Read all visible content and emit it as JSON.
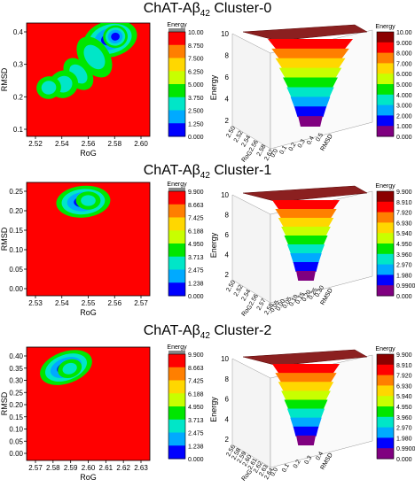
{
  "panels": [
    {
      "title": {
        "prefix": "ChAT-Aβ",
        "sub": "42",
        "suffix": " Cluster-0"
      },
      "chart_data": {
        "type": "heatmap",
        "xlabel": "RoG",
        "ylabel": "RMSD",
        "x_ticks": [
          "2.52",
          "2.54",
          "2.56",
          "2.58",
          "2.60"
        ],
        "y_ticks": [
          "0.1",
          "0.2",
          "0.3",
          "0.4"
        ],
        "xlim": [
          2.505,
          2.603
        ],
        "ylim": [
          0.03,
          0.49
        ],
        "colorbar": {
          "label": "Energy",
          "ticks": [
            "10.00",
            "8.750",
            "7.500",
            "6.250",
            "5.000",
            "3.750",
            "2.500",
            "1.250",
            "0.000"
          ],
          "range": [
            0,
            10
          ]
        },
        "surface": {
          "zlabel": "Energy",
          "z_ticks": [
            "10",
            "8",
            "6",
            "4",
            "2"
          ],
          "x_ticks": [
            "2.50",
            "2.52",
            "2.54",
            "2.56",
            "2.58",
            "2.62"
          ],
          "x_label": "RoG",
          "y_ticks": [
            "0.0",
            "0.1",
            "0.2",
            "0.3",
            "0.4",
            "0.5"
          ],
          "y_label": "RMSD",
          "zlim": [
            0,
            10
          ]
        },
        "colorbar2": {
          "label": "Energy",
          "ticks": [
            "10.00",
            "9.000",
            "8.000",
            "7.000",
            "6.000",
            "5.000",
            "4.000",
            "3.000",
            "2.000",
            "1.000",
            "0.000"
          ],
          "range": [
            0,
            10
          ]
        }
      }
    },
    {
      "title": {
        "prefix": "ChAT-Aβ",
        "sub": "42",
        "suffix": " Cluster-1"
      },
      "chart_data": {
        "type": "heatmap",
        "xlabel": "RoG",
        "ylabel": "RMSD",
        "x_ticks": [
          "2.53",
          "2.54",
          "2.55",
          "2.56",
          "2.57"
        ],
        "y_ticks": [
          "0.00",
          "0.05",
          "0.10",
          "0.15",
          "0.20",
          "0.25"
        ],
        "xlim": [
          2.524,
          2.578
        ],
        "ylim": [
          -0.01,
          0.285
        ],
        "colorbar": {
          "label": "Energy",
          "ticks": [
            "9.900",
            "8.663",
            "7.425",
            "6.188",
            "4.950",
            "3.713",
            "2.475",
            "1.238",
            "0.000"
          ],
          "range": [
            0,
            9.9
          ]
        },
        "surface": {
          "zlabel": "Energy",
          "z_ticks": [
            "10",
            "8",
            "6",
            "4",
            "2"
          ],
          "x_ticks": [
            "2.50",
            "2.52",
            "2.54",
            "2.56",
            "2.57",
            "2.58"
          ],
          "x_label": "RoG",
          "y_ticks": [
            "-0.05",
            "0.00",
            "0.05",
            "0.10",
            "0.15",
            "0.20",
            "0.25",
            "0.30"
          ],
          "y_label": "RMSD",
          "zlim": [
            0,
            10
          ]
        },
        "colorbar2": {
          "label": "Energy",
          "ticks": [
            "9.900",
            "8.910",
            "7.920",
            "6.930",
            "5.940",
            "4.950",
            "3.960",
            "2.970",
            "1.980",
            "0.9900",
            "0.000"
          ],
          "range": [
            0,
            9.9
          ]
        }
      }
    },
    {
      "title": {
        "prefix": "ChAT-Aβ",
        "sub": "42",
        "suffix": " Cluster-2"
      },
      "chart_data": {
        "type": "heatmap",
        "xlabel": "RoG",
        "ylabel": "RMSD",
        "x_ticks": [
          "2.57",
          "2.58",
          "2.59",
          "2.60",
          "2.61",
          "2.62",
          "2.63"
        ],
        "y_ticks": [
          "0.00",
          "0.05",
          "0.10",
          "0.15",
          "0.20",
          "0.25",
          "0.30",
          "0.35",
          "0.40"
        ],
        "xlim": [
          2.569,
          2.636
        ],
        "ylim": [
          -0.005,
          0.41
        ],
        "colorbar": {
          "label": "Energy",
          "ticks": [
            "9.900",
            "8.663",
            "7.425",
            "6.188",
            "4.950",
            "3.713",
            "2.475",
            "1.238",
            "0.000"
          ],
          "range": [
            0,
            9.9
          ]
        },
        "surface": {
          "zlabel": "Energy",
          "z_ticks": [
            "10",
            "8",
            "6",
            "4",
            "2"
          ],
          "x_ticks": [
            "2.56",
            "2.58",
            "2.59",
            "2.60",
            "2.61",
            "2.62",
            "2.63",
            "2.64"
          ],
          "x_label": "RoG",
          "y_ticks": [
            "0.0",
            "0.1",
            "0.2",
            "0.3",
            "0.4"
          ],
          "y_label": "RMSD",
          "zlim": [
            0,
            10
          ]
        },
        "colorbar2": {
          "label": "Energy",
          "ticks": [
            "9.900",
            "8.910",
            "7.920",
            "6.930",
            "5.940",
            "4.950",
            "3.960",
            "2.970",
            "1.980",
            "0.9900",
            "0.000"
          ],
          "range": [
            0,
            9.9
          ]
        }
      }
    }
  ]
}
